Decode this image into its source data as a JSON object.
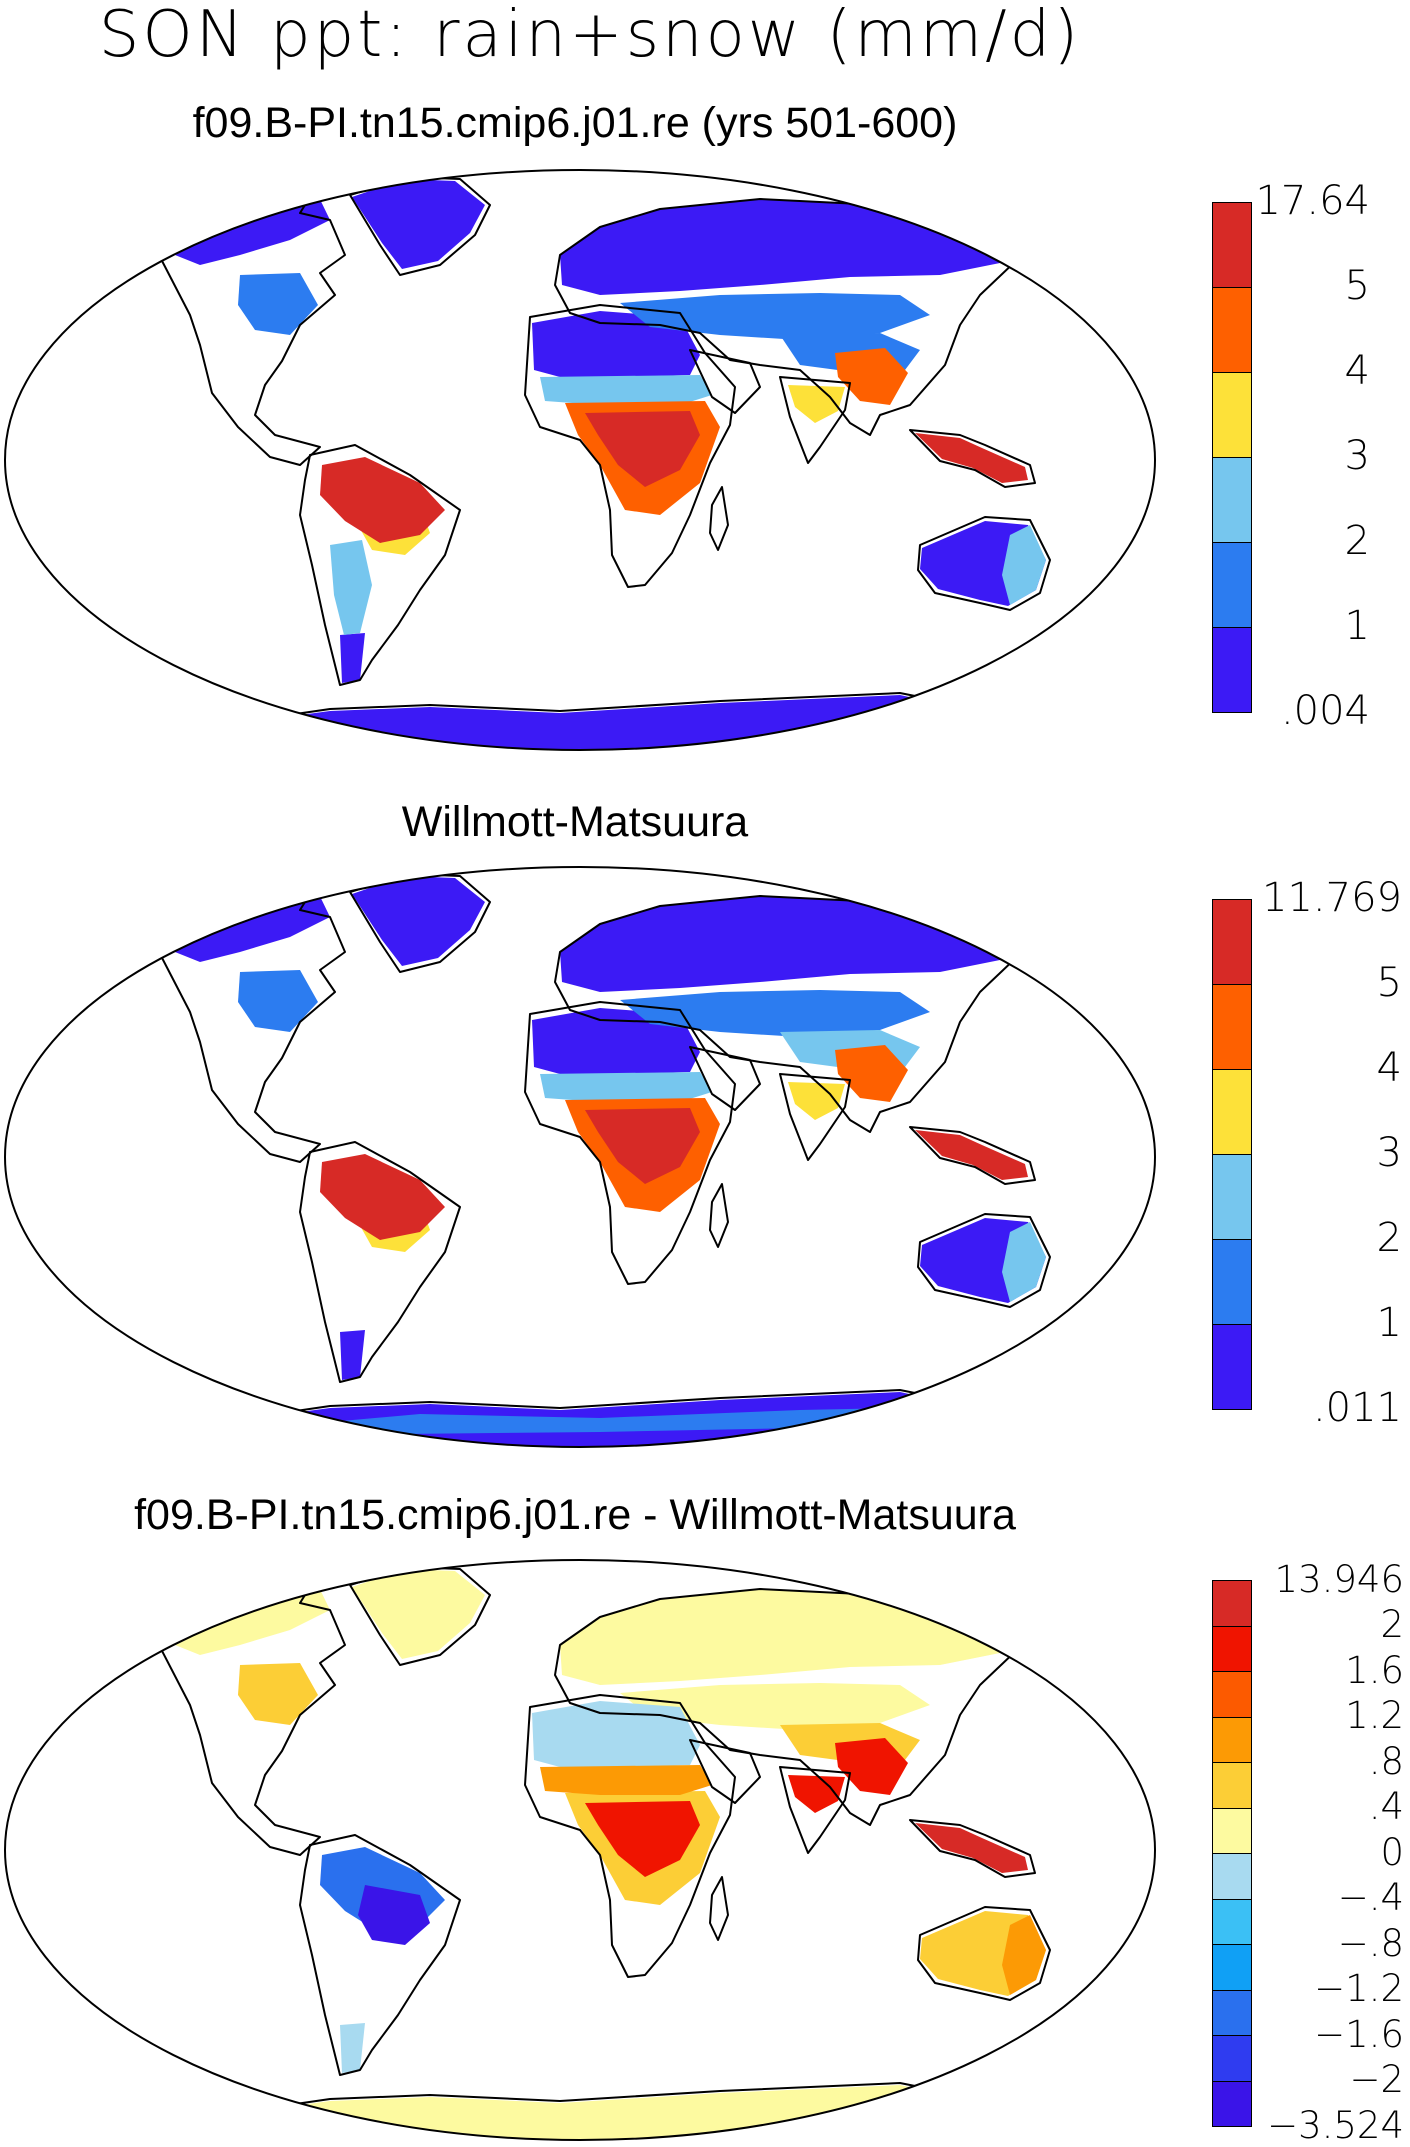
{
  "figure": {
    "title": "SON ppt: rain+snow (mm/d)"
  },
  "colors": {
    "abs": [
      "#3c1af5",
      "#2c7cf0",
      "#76c6ee",
      "#fde139",
      "#fe6000",
      "#d72a26"
    ],
    "diff": [
      "#3a14e8",
      "#2f3cf0",
      "#2a70ee",
      "#10a0f5",
      "#3bc0f5",
      "#a8daf0",
      "#fdfaa0",
      "#fcce36",
      "#fc9a05",
      "#fc5a00",
      "#f01400",
      "#d72a26"
    ],
    "land": "#ffffff",
    "coast": "#000000"
  },
  "panels": [
    {
      "title": "f09.B-PI.tn15.cmip6.j01.re (yrs 501-600)",
      "colorbar": [
        "17.64",
        "5",
        "4",
        "3",
        "2",
        "1",
        ".004"
      ],
      "fills": [
        {
          "color_index": 0,
          "regions": [
            "na_north",
            "greenland",
            "eurasia_north",
            "north_africa",
            "australia",
            "antarctica",
            "patagonia"
          ]
        },
        {
          "color_index": 1,
          "regions": [
            "na_east",
            "siberia",
            "china_north"
          ]
        },
        {
          "color_index": 2,
          "regions": [
            "sahel",
            "australia_east",
            "andes"
          ]
        },
        {
          "color_index": 3,
          "regions": [
            "amazon_south",
            "india_north"
          ]
        },
        {
          "color_index": 4,
          "regions": [
            "china_south",
            "congo_ring"
          ]
        },
        {
          "color_index": 5,
          "regions": [
            "amazon",
            "congo",
            "maritime"
          ]
        }
      ]
    },
    {
      "title": "Willmott-Matsuura",
      "colorbar": [
        "11.769",
        "5",
        "4",
        "3",
        "2",
        "1",
        ".011"
      ],
      "fills": [
        {
          "color_index": 0,
          "regions": [
            "na_north",
            "greenland",
            "eurasia_north",
            "north_africa",
            "australia",
            "antarctica",
            "patagonia"
          ]
        },
        {
          "color_index": 1,
          "regions": [
            "na_east",
            "siberia",
            "antarctica_coast"
          ]
        },
        {
          "color_index": 2,
          "regions": [
            "sahel",
            "australia_east",
            "china_north"
          ]
        },
        {
          "color_index": 3,
          "regions": [
            "india_north",
            "amazon_south"
          ]
        },
        {
          "color_index": 4,
          "regions": [
            "china_south",
            "congo_ring"
          ]
        },
        {
          "color_index": 5,
          "regions": [
            "amazon",
            "congo",
            "maritime"
          ]
        }
      ]
    },
    {
      "title": "f09.B-PI.tn15.cmip6.j01.re - Willmott-Matsuura",
      "colorbar": [
        "13.946",
        "2",
        "1.6",
        "1.2",
        ".8",
        ".4",
        "0",
        "−.4",
        "−.8",
        "−1.2",
        "−1.6",
        "−2",
        "−3.524"
      ],
      "fills": [
        {
          "color_index": 6,
          "regions": [
            "na_north",
            "greenland",
            "eurasia_north",
            "siberia",
            "antarctica"
          ]
        },
        {
          "color_index": 5,
          "regions": [
            "north_africa",
            "patagonia"
          ]
        },
        {
          "color_index": 7,
          "regions": [
            "na_east",
            "australia",
            "congo_ring",
            "china_north"
          ]
        },
        {
          "color_index": 8,
          "regions": [
            "sahel",
            "australia_east"
          ]
        },
        {
          "color_index": 2,
          "regions": [
            "amazon"
          ]
        },
        {
          "color_index": 0,
          "regions": [
            "amazon_south"
          ]
        },
        {
          "color_index": 10,
          "regions": [
            "china_south",
            "congo",
            "india_north"
          ]
        },
        {
          "color_index": 11,
          "regions": [
            "maritime"
          ]
        }
      ]
    }
  ]
}
